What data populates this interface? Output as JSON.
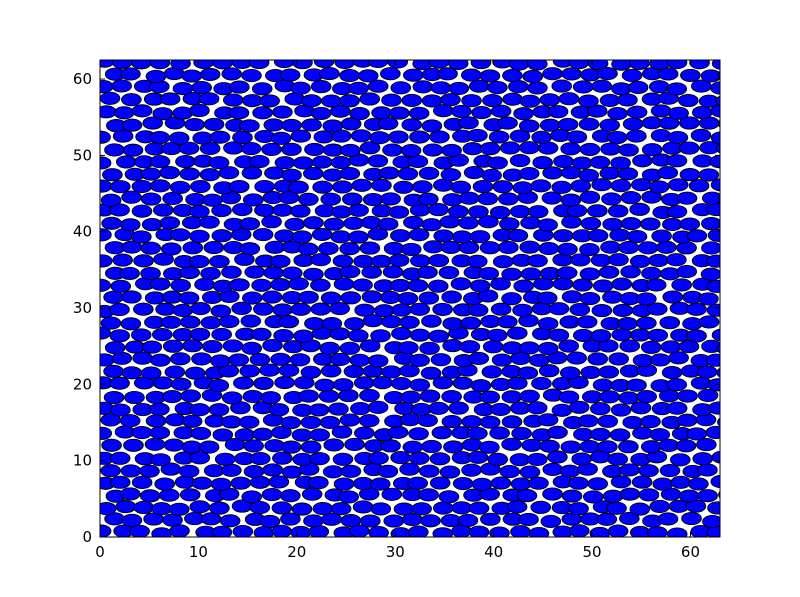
{
  "chart_data": {
    "type": "scatter",
    "title": "",
    "xlabel": "",
    "ylabel": "",
    "xlim": [
      0,
      63
    ],
    "ylim": [
      0,
      62.5
    ],
    "x_ticks": [
      0,
      10,
      20,
      30,
      40,
      50,
      60
    ],
    "y_ticks": [
      0,
      10,
      20,
      30,
      40,
      50,
      60
    ],
    "x_tick_labels": [
      "0",
      "10",
      "20",
      "30",
      "40",
      "50",
      "60"
    ],
    "y_tick_labels": [
      "0",
      "10",
      "20",
      "30",
      "40",
      "50",
      "60"
    ],
    "grid": false,
    "legend": "none",
    "marker": {
      "shape": "ellipse",
      "fill": "#0000ff",
      "edge": "#000000",
      "width": 2.0,
      "height": 1.6
    },
    "points_generator": {
      "description": "dense packing of equal discs, approx 2.0 x 1.6 data units each, on a jittered hexagonal lattice",
      "row_spacing": 1.62,
      "col_spacing": 2.02,
      "jitter": 0.35,
      "seed": 7
    }
  }
}
